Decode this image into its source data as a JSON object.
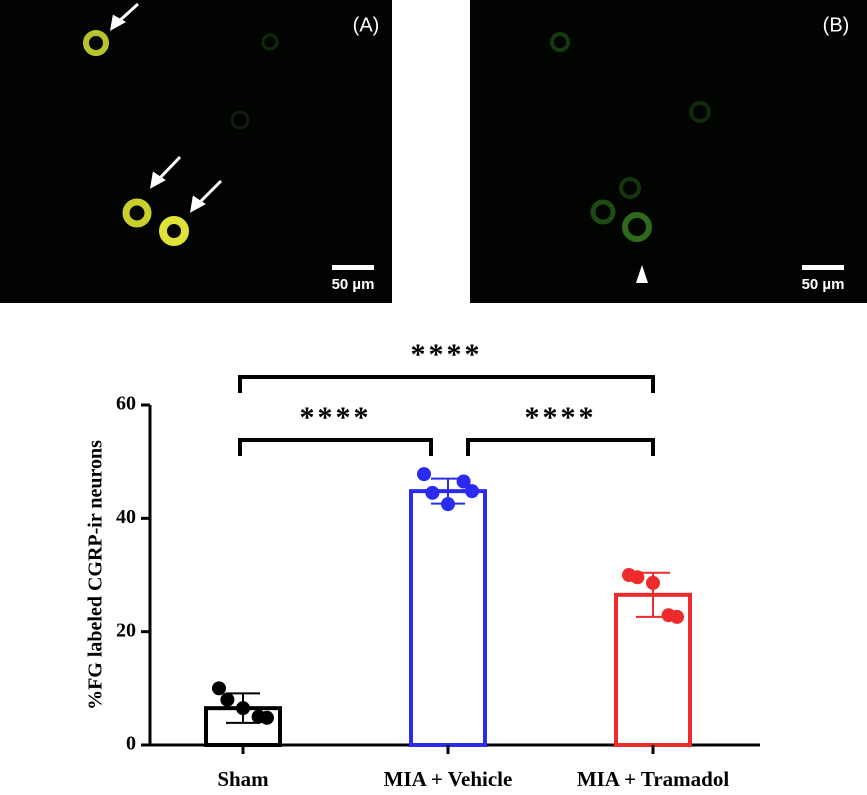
{
  "panels": [
    {
      "label": "(A)",
      "scale_bar": "50 µm"
    },
    {
      "label": "(B)",
      "scale_bar": "50 µm"
    }
  ],
  "chart_data": {
    "type": "bar",
    "ylabel": "%FG labeled CGRP-ir neurons",
    "categories": [
      "Sham",
      "MIA + Vehicle",
      "MIA + Tramadol"
    ],
    "values": [
      6.5,
      44.8,
      26.5
    ],
    "errors": [
      2.6,
      2.2,
      3.9
    ],
    "colors": [
      "#000000",
      "#2b2bef",
      "#ee2b2b"
    ],
    "points": [
      [
        10,
        8,
        6.5,
        5,
        4.8
      ],
      [
        47.8,
        44.5,
        42.5,
        46.5,
        44.8
      ],
      [
        30,
        29.6,
        28.6,
        22.9,
        22.6
      ]
    ],
    "ylim": [
      0,
      60
    ],
    "yticks": [
      0,
      20,
      40,
      60
    ],
    "significance": [
      {
        "groups": [
          0,
          2
        ],
        "label": "****"
      },
      {
        "groups": [
          0,
          1
        ],
        "label": "****"
      },
      {
        "groups": [
          1,
          2
        ],
        "label": "****"
      }
    ]
  }
}
